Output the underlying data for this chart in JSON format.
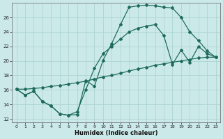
{
  "xlabel": "Humidex (Indice chaleur)",
  "bg_color": "#cce9e9",
  "grid_color": "#add4d4",
  "line_color": "#1e6b5e",
  "xlim": [
    -0.5,
    23.5
  ],
  "ylim": [
    11.5,
    28.0
  ],
  "xticks": [
    0,
    1,
    2,
    3,
    4,
    5,
    6,
    7,
    8,
    9,
    10,
    11,
    12,
    13,
    14,
    15,
    16,
    17,
    18,
    19,
    20,
    21,
    22,
    23
  ],
  "yticks": [
    12,
    14,
    16,
    18,
    20,
    22,
    24,
    26
  ],
  "line1_x": [
    0,
    1,
    2,
    3,
    4,
    5,
    6,
    7,
    8,
    9,
    10,
    11,
    12,
    13,
    14,
    15,
    16,
    17,
    18,
    19,
    20,
    21,
    22,
    23
  ],
  "line1_y": [
    16.1,
    15.3,
    15.8,
    14.4,
    13.8,
    12.7,
    12.5,
    12.6,
    17.3,
    16.5,
    20.1,
    22.4,
    25.0,
    27.4,
    27.6,
    27.7,
    27.6,
    27.4,
    27.3,
    26.0,
    24.0,
    22.8,
    21.4,
    20.5
  ],
  "line2_x": [
    0,
    1,
    2,
    3,
    4,
    5,
    6,
    7,
    8,
    9,
    10,
    11,
    12,
    13,
    14,
    15,
    16,
    17,
    18,
    19,
    20,
    21,
    22,
    23
  ],
  "line2_y": [
    16.1,
    15.3,
    15.8,
    14.4,
    13.8,
    12.7,
    12.5,
    13.0,
    16.0,
    19.0,
    21.0,
    22.0,
    23.0,
    24.0,
    24.5,
    24.8,
    25.0,
    23.5,
    19.5,
    21.5,
    19.8,
    22.0,
    21.0,
    20.5
  ],
  "line3_x": [
    0,
    1,
    2,
    3,
    4,
    5,
    6,
    7,
    8,
    9,
    10,
    11,
    12,
    13,
    14,
    15,
    16,
    17,
    18,
    19,
    20,
    21,
    22,
    23
  ],
  "line3_y": [
    16.1,
    16.1,
    16.2,
    16.3,
    16.5,
    16.6,
    16.8,
    17.0,
    17.2,
    17.5,
    17.8,
    18.0,
    18.3,
    18.6,
    18.9,
    19.1,
    19.4,
    19.6,
    19.8,
    20.0,
    20.2,
    20.4,
    20.5,
    20.5
  ],
  "marker_size": 2.0,
  "linewidth": 0.9
}
